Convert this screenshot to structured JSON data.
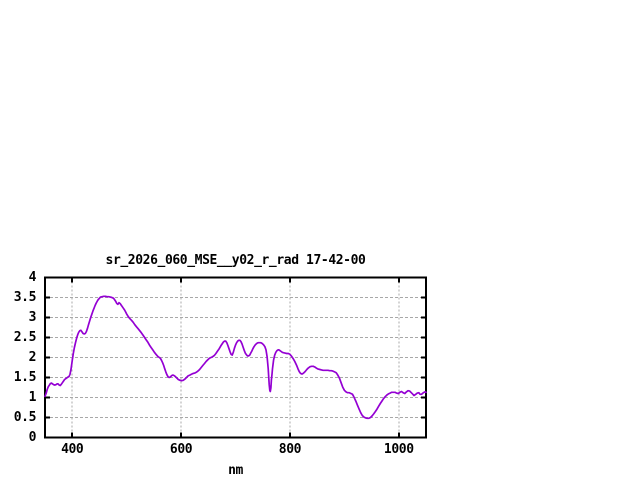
{
  "window": {
    "background": "#ffffff"
  },
  "chart_data": {
    "type": "line",
    "title": "sr_2026_060_MSE__y02_r_rad 17-42-00",
    "xlabel": "nm",
    "ylabel": "",
    "xlim": [
      350,
      1050
    ],
    "ylim": [
      0,
      4
    ],
    "xticks": [
      400,
      600,
      800,
      1000
    ],
    "yticks": [
      0,
      0.5,
      1,
      1.5,
      2,
      2.5,
      3,
      3.5,
      4
    ],
    "xtick_labels": [
      "400",
      "600",
      "800",
      "1000"
    ],
    "ytick_labels": [
      "0",
      "0.5",
      "1",
      "1.5",
      "2",
      "2.5",
      "3",
      "3.5",
      "4"
    ],
    "grid": true,
    "legend": "none",
    "colors": {
      "line": "#9400d3",
      "grid": "#a8a8a8",
      "border": "#000000",
      "text": "#000000"
    },
    "series": [
      {
        "color": "#9400d3",
        "points": [
          [
            350,
            1.03
          ],
          [
            352,
            1.1
          ],
          [
            354,
            1.2
          ],
          [
            356,
            1.27
          ],
          [
            358,
            1.31
          ],
          [
            360,
            1.35
          ],
          [
            362,
            1.36
          ],
          [
            364,
            1.34
          ],
          [
            366,
            1.32
          ],
          [
            368,
            1.31
          ],
          [
            370,
            1.32
          ],
          [
            372,
            1.34
          ],
          [
            374,
            1.34
          ],
          [
            376,
            1.31
          ],
          [
            378,
            1.3
          ],
          [
            380,
            1.33
          ],
          [
            382,
            1.37
          ],
          [
            384,
            1.41
          ],
          [
            386,
            1.45
          ],
          [
            388,
            1.47
          ],
          [
            390,
            1.49
          ],
          [
            392,
            1.51
          ],
          [
            394,
            1.52
          ],
          [
            396,
            1.58
          ],
          [
            398,
            1.72
          ],
          [
            400,
            1.92
          ],
          [
            402,
            2.1
          ],
          [
            404,
            2.25
          ],
          [
            406,
            2.37
          ],
          [
            408,
            2.48
          ],
          [
            410,
            2.57
          ],
          [
            412,
            2.63
          ],
          [
            414,
            2.67
          ],
          [
            416,
            2.68
          ],
          [
            418,
            2.64
          ],
          [
            420,
            2.6
          ],
          [
            422,
            2.59
          ],
          [
            424,
            2.6
          ],
          [
            426,
            2.65
          ],
          [
            428,
            2.73
          ],
          [
            430,
            2.82
          ],
          [
            432,
            2.91
          ],
          [
            434,
            3.0
          ],
          [
            436,
            3.08
          ],
          [
            438,
            3.16
          ],
          [
            440,
            3.23
          ],
          [
            442,
            3.3
          ],
          [
            444,
            3.36
          ],
          [
            446,
            3.41
          ],
          [
            448,
            3.45
          ],
          [
            450,
            3.48
          ],
          [
            452,
            3.51
          ],
          [
            455,
            3.52
          ],
          [
            458,
            3.53
          ],
          [
            461,
            3.53
          ],
          [
            464,
            3.52
          ],
          [
            467,
            3.52
          ],
          [
            470,
            3.51
          ],
          [
            473,
            3.5
          ],
          [
            476,
            3.48
          ],
          [
            478,
            3.44
          ],
          [
            480,
            3.4
          ],
          [
            482,
            3.35
          ],
          [
            484,
            3.33
          ],
          [
            486,
            3.37
          ],
          [
            488,
            3.35
          ],
          [
            490,
            3.31
          ],
          [
            492,
            3.27
          ],
          [
            494,
            3.23
          ],
          [
            496,
            3.19
          ],
          [
            498,
            3.14
          ],
          [
            500,
            3.09
          ],
          [
            503,
            3.02
          ],
          [
            506,
            2.97
          ],
          [
            509,
            2.93
          ],
          [
            512,
            2.88
          ],
          [
            515,
            2.82
          ],
          [
            518,
            2.77
          ],
          [
            521,
            2.72
          ],
          [
            524,
            2.67
          ],
          [
            527,
            2.62
          ],
          [
            530,
            2.56
          ],
          [
            533,
            2.5
          ],
          [
            536,
            2.44
          ],
          [
            539,
            2.38
          ],
          [
            542,
            2.31
          ],
          [
            545,
            2.25
          ],
          [
            548,
            2.19
          ],
          [
            551,
            2.13
          ],
          [
            554,
            2.08
          ],
          [
            557,
            2.03
          ],
          [
            560,
            2.0
          ],
          [
            562,
            1.98
          ],
          [
            564,
            1.93
          ],
          [
            566,
            1.87
          ],
          [
            568,
            1.8
          ],
          [
            570,
            1.72
          ],
          [
            572,
            1.64
          ],
          [
            574,
            1.57
          ],
          [
            576,
            1.52
          ],
          [
            578,
            1.5
          ],
          [
            580,
            1.51
          ],
          [
            583,
            1.55
          ],
          [
            585,
            1.56
          ],
          [
            587,
            1.55
          ],
          [
            589,
            1.53
          ],
          [
            592,
            1.49
          ],
          [
            595,
            1.45
          ],
          [
            598,
            1.43
          ],
          [
            601,
            1.42
          ],
          [
            604,
            1.43
          ],
          [
            607,
            1.46
          ],
          [
            610,
            1.5
          ],
          [
            613,
            1.54
          ],
          [
            616,
            1.56
          ],
          [
            619,
            1.58
          ],
          [
            622,
            1.6
          ],
          [
            625,
            1.61
          ],
          [
            628,
            1.63
          ],
          [
            631,
            1.66
          ],
          [
            634,
            1.7
          ],
          [
            637,
            1.75
          ],
          [
            640,
            1.8
          ],
          [
            643,
            1.85
          ],
          [
            646,
            1.9
          ],
          [
            649,
            1.94
          ],
          [
            652,
            1.98
          ],
          [
            655,
            2.0
          ],
          [
            658,
            2.02
          ],
          [
            661,
            2.05
          ],
          [
            664,
            2.1
          ],
          [
            667,
            2.16
          ],
          [
            670,
            2.22
          ],
          [
            673,
            2.29
          ],
          [
            676,
            2.35
          ],
          [
            678,
            2.39
          ],
          [
            680,
            2.41
          ],
          [
            682,
            2.41
          ],
          [
            684,
            2.37
          ],
          [
            686,
            2.3
          ],
          [
            688,
            2.22
          ],
          [
            690,
            2.14
          ],
          [
            692,
            2.08
          ],
          [
            694,
            2.06
          ],
          [
            696,
            2.13
          ],
          [
            698,
            2.23
          ],
          [
            700,
            2.31
          ],
          [
            702,
            2.37
          ],
          [
            704,
            2.41
          ],
          [
            706,
            2.43
          ],
          [
            708,
            2.43
          ],
          [
            710,
            2.4
          ],
          [
            712,
            2.34
          ],
          [
            714,
            2.26
          ],
          [
            716,
            2.18
          ],
          [
            718,
            2.11
          ],
          [
            720,
            2.07
          ],
          [
            722,
            2.04
          ],
          [
            724,
            2.04
          ],
          [
            726,
            2.06
          ],
          [
            728,
            2.11
          ],
          [
            730,
            2.16
          ],
          [
            732,
            2.22
          ],
          [
            734,
            2.27
          ],
          [
            736,
            2.31
          ],
          [
            738,
            2.34
          ],
          [
            740,
            2.36
          ],
          [
            742,
            2.37
          ],
          [
            744,
            2.37
          ],
          [
            746,
            2.37
          ],
          [
            748,
            2.36
          ],
          [
            750,
            2.34
          ],
          [
            752,
            2.31
          ],
          [
            754,
            2.27
          ],
          [
            756,
            2.19
          ],
          [
            758,
            2.02
          ],
          [
            760,
            1.72
          ],
          [
            761,
            1.52
          ],
          [
            762,
            1.32
          ],
          [
            763,
            1.18
          ],
          [
            764,
            1.15
          ],
          [
            765,
            1.24
          ],
          [
            766,
            1.44
          ],
          [
            767,
            1.58
          ],
          [
            768,
            1.72
          ],
          [
            770,
            1.94
          ],
          [
            772,
            2.06
          ],
          [
            774,
            2.13
          ],
          [
            776,
            2.17
          ],
          [
            778,
            2.19
          ],
          [
            780,
            2.19
          ],
          [
            782,
            2.17
          ],
          [
            784,
            2.15
          ],
          [
            786,
            2.13
          ],
          [
            788,
            2.12
          ],
          [
            791,
            2.11
          ],
          [
            794,
            2.1
          ],
          [
            797,
            2.1
          ],
          [
            800,
            2.08
          ],
          [
            803,
            2.03
          ],
          [
            806,
            1.97
          ],
          [
            809,
            1.9
          ],
          [
            812,
            1.81
          ],
          [
            815,
            1.71
          ],
          [
            817,
            1.65
          ],
          [
            819,
            1.61
          ],
          [
            821,
            1.59
          ],
          [
            823,
            1.59
          ],
          [
            825,
            1.61
          ],
          [
            828,
            1.65
          ],
          [
            831,
            1.7
          ],
          [
            834,
            1.74
          ],
          [
            837,
            1.77
          ],
          [
            840,
            1.78
          ],
          [
            843,
            1.78
          ],
          [
            846,
            1.76
          ],
          [
            849,
            1.73
          ],
          [
            852,
            1.71
          ],
          [
            855,
            1.7
          ],
          [
            858,
            1.69
          ],
          [
            861,
            1.68
          ],
          [
            864,
            1.68
          ],
          [
            867,
            1.68
          ],
          [
            870,
            1.68
          ],
          [
            873,
            1.67
          ],
          [
            876,
            1.67
          ],
          [
            879,
            1.66
          ],
          [
            882,
            1.64
          ],
          [
            885,
            1.62
          ],
          [
            888,
            1.56
          ],
          [
            891,
            1.48
          ],
          [
            894,
            1.37
          ],
          [
            897,
            1.26
          ],
          [
            900,
            1.18
          ],
          [
            903,
            1.14
          ],
          [
            906,
            1.12
          ],
          [
            909,
            1.12
          ],
          [
            912,
            1.1
          ],
          [
            915,
            1.08
          ],
          [
            917,
            1.03
          ],
          [
            919,
            0.97
          ],
          [
            921,
            0.91
          ],
          [
            924,
            0.81
          ],
          [
            927,
            0.71
          ],
          [
            930,
            0.62
          ],
          [
            933,
            0.55
          ],
          [
            936,
            0.51
          ],
          [
            939,
            0.49
          ],
          [
            942,
            0.48
          ],
          [
            945,
            0.48
          ],
          [
            948,
            0.5
          ],
          [
            951,
            0.54
          ],
          [
            954,
            0.59
          ],
          [
            957,
            0.65
          ],
          [
            960,
            0.71
          ],
          [
            963,
            0.78
          ],
          [
            966,
            0.85
          ],
          [
            969,
            0.91
          ],
          [
            972,
            0.97
          ],
          [
            975,
            1.02
          ],
          [
            978,
            1.06
          ],
          [
            981,
            1.09
          ],
          [
            984,
            1.11
          ],
          [
            987,
            1.13
          ],
          [
            990,
            1.13
          ],
          [
            993,
            1.13
          ],
          [
            996,
            1.11
          ],
          [
            999,
            1.1
          ],
          [
            1002,
            1.13
          ],
          [
            1005,
            1.15
          ],
          [
            1008,
            1.12
          ],
          [
            1011,
            1.1
          ],
          [
            1014,
            1.14
          ],
          [
            1017,
            1.17
          ],
          [
            1020,
            1.16
          ],
          [
            1023,
            1.12
          ],
          [
            1026,
            1.08
          ],
          [
            1028,
            1.05
          ],
          [
            1031,
            1.08
          ],
          [
            1034,
            1.11
          ],
          [
            1037,
            1.12
          ],
          [
            1039,
            1.08
          ],
          [
            1042,
            1.08
          ],
          [
            1045,
            1.12
          ],
          [
            1048,
            1.14
          ],
          [
            1050,
            1.13
          ]
        ]
      }
    ]
  }
}
